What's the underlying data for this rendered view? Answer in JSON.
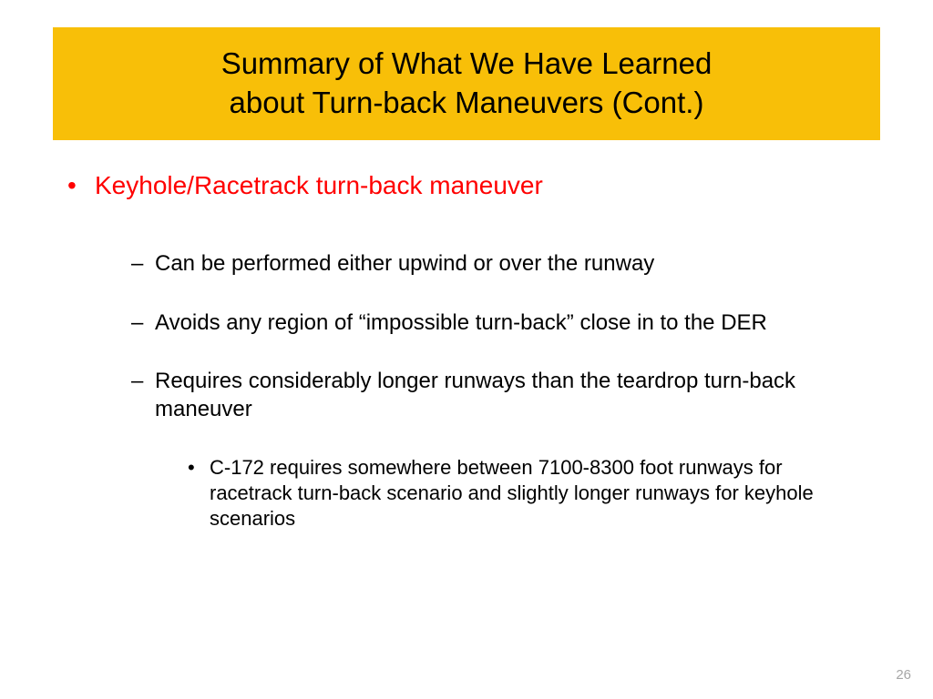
{
  "colors": {
    "banner_bg": "#f8bf08",
    "title_text": "#000000",
    "main_bullet_text": "#ff0000",
    "body_text": "#000000",
    "page_number": "#a6a6a6",
    "slide_bg": "#ffffff"
  },
  "title": {
    "line1": "Summary of What We Have Learned",
    "line2": "about Turn-back Maneuvers (Cont.)"
  },
  "bullets": {
    "main": "Keyhole/Racetrack turn-back maneuver",
    "sub1": "Can be performed either upwind or over the runway",
    "sub2": "Avoids any region of “impossible turn-back” close in to the DER",
    "sub3": "Requires considerably longer runways than the teardrop turn-back maneuver",
    "sub3a": "C-172 requires somewhere between 7100-8300 foot runways for racetrack turn-back scenario and slightly longer runways for keyhole scenarios"
  },
  "page_number": "26"
}
